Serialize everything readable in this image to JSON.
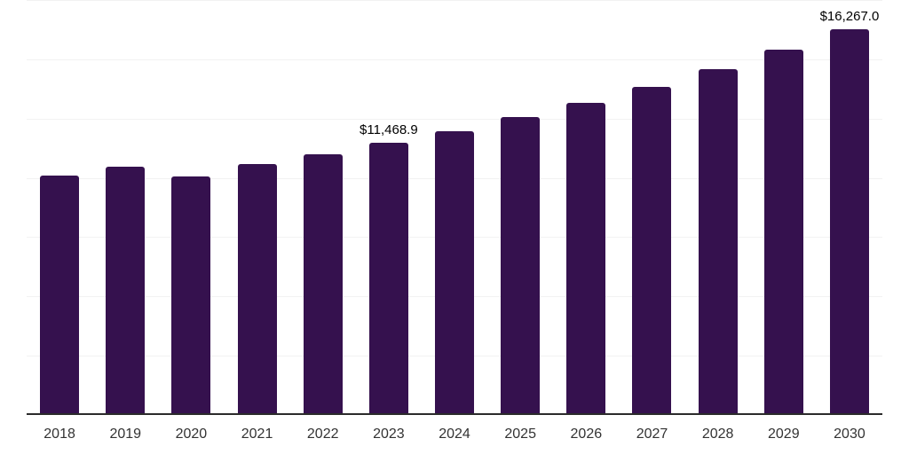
{
  "colors": {
    "background": "#ffffff",
    "bar_color": "#35114e",
    "axis_line_color": "#2b2b2b",
    "gridline_color": "#f2f2f2",
    "value_label_color": "#000000",
    "tick_label_color": "#333333"
  },
  "chart_data": {
    "type": "bar",
    "title": "",
    "categories": [
      "2018",
      "2019",
      "2020",
      "2021",
      "2022",
      "2023",
      "2024",
      "2025",
      "2026",
      "2027",
      "2028",
      "2029",
      "2030"
    ],
    "values": [
      10090,
      10470,
      10060,
      10570,
      10980,
      11468.9,
      11960,
      12560,
      13160,
      13830,
      14580,
      15400,
      16267.0
    ],
    "data_labels": [
      "",
      "",
      "",
      "",
      "",
      "$11,468.9",
      "",
      "",
      "",
      "",
      "",
      "",
      "$16,267.0"
    ],
    "labeled_points": {
      "2023": "$11,468.9",
      "2030": "$16,267.0"
    },
    "xlabel": "",
    "ylabel": "",
    "ylim": [
      0,
      17500
    ],
    "gridline_step": 2500,
    "grid": "horizontal-light",
    "legend": "none"
  }
}
